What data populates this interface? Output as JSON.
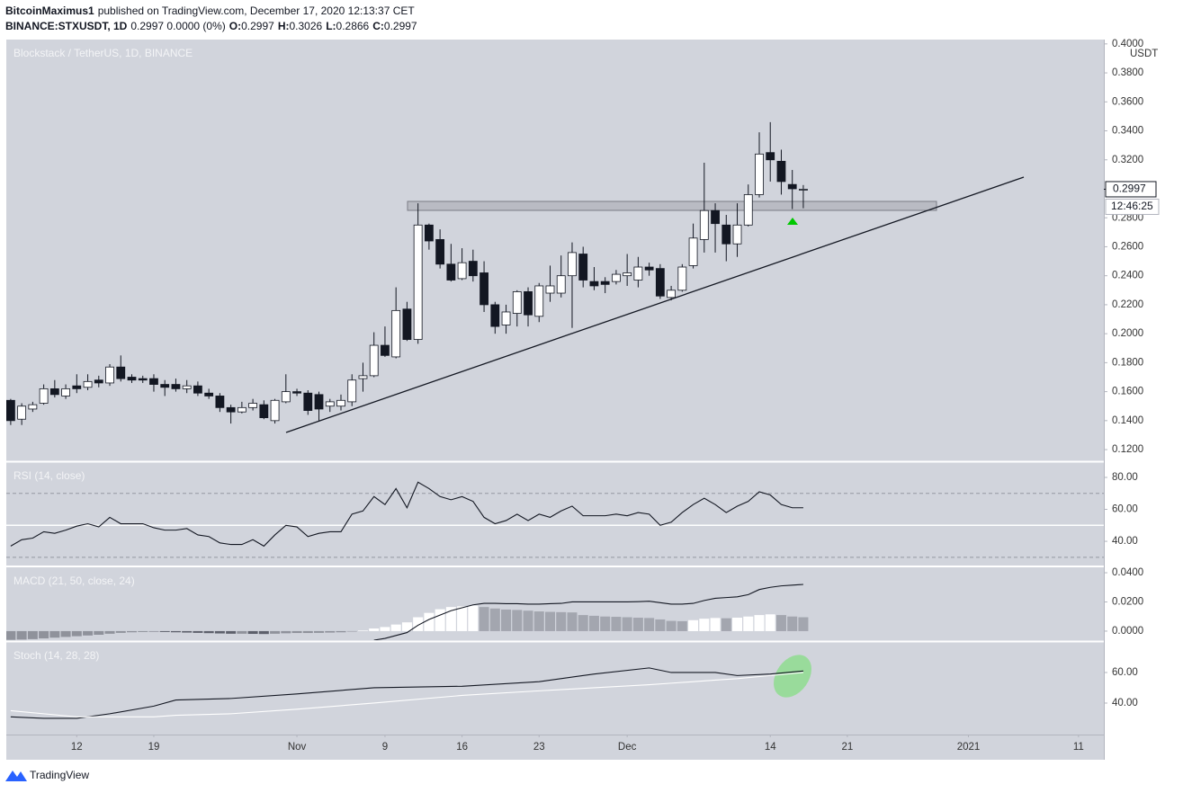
{
  "header": {
    "author": "BitcoinMaximus1",
    "published": "published on TradingView.com, December 17, 2020 12:13:37 CET",
    "symbol": "BINANCE:STXUSDT, 1D",
    "quote": "0.2997 0.0000 (0%)",
    "ohlc": [
      {
        "label": "O:",
        "value": "0.2997"
      },
      {
        "label": "H:",
        "value": "0.3026"
      },
      {
        "label": "L:",
        "value": "0.2866"
      },
      {
        "label": "C:",
        "value": "0.2997"
      }
    ]
  },
  "footer": {
    "brand": "TradingView"
  },
  "chart_data": [
    {
      "type": "candlestick",
      "title": "Blockstack / TetherUS, 1D, BINANCE",
      "unit": "USDT",
      "up_color": "#ffffff",
      "down_color": "#131722",
      "x": [
        280,
        281,
        282,
        283,
        284,
        285,
        286,
        287,
        288,
        289,
        290,
        291,
        292,
        293,
        294,
        295,
        296,
        297,
        298,
        299,
        300,
        301,
        302,
        303,
        304,
        305,
        306,
        307,
        308,
        309,
        310,
        311,
        312,
        313,
        314,
        315,
        316,
        317,
        318,
        319,
        320,
        321,
        322,
        323,
        324,
        325,
        326,
        327,
        328,
        329,
        330,
        331,
        332,
        333,
        334,
        335,
        336,
        337,
        338,
        339,
        340,
        341,
        342,
        343,
        344,
        345,
        346,
        347,
        348,
        349,
        350,
        351,
        352
      ],
      "open": [
        0.154,
        0.141,
        0.148,
        0.152,
        0.162,
        0.157,
        0.164,
        0.163,
        0.168,
        0.166,
        0.177,
        0.17,
        0.169,
        0.169,
        0.165,
        0.165,
        0.162,
        0.164,
        0.159,
        0.157,
        0.149,
        0.146,
        0.149,
        0.151,
        0.14,
        0.153,
        0.16,
        0.159,
        0.158,
        0.15,
        0.15,
        0.153,
        0.169,
        0.171,
        0.192,
        0.184,
        0.217,
        0.196,
        0.275,
        0.265,
        0.248,
        0.238,
        0.25,
        0.242,
        0.22,
        0.206,
        0.214,
        0.229,
        0.212,
        0.228,
        0.228,
        0.24,
        0.255,
        0.236,
        0.236,
        0.236,
        0.24,
        0.237,
        0.246,
        0.245,
        0.225,
        0.23,
        0.247,
        0.265,
        0.285,
        0.275,
        0.262,
        0.275,
        0.296,
        0.325,
        0.319,
        0.303,
        0.2997
      ],
      "high": [
        0.155,
        0.152,
        0.153,
        0.165,
        0.168,
        0.165,
        0.172,
        0.172,
        0.171,
        0.179,
        0.185,
        0.172,
        0.171,
        0.172,
        0.168,
        0.169,
        0.168,
        0.167,
        0.162,
        0.159,
        0.151,
        0.153,
        0.155,
        0.154,
        0.155,
        0.172,
        0.162,
        0.161,
        0.16,
        0.155,
        0.158,
        0.172,
        0.18,
        0.201,
        0.205,
        0.232,
        0.222,
        0.29,
        0.276,
        0.272,
        0.262,
        0.259,
        0.258,
        0.25,
        0.222,
        0.22,
        0.23,
        0.232,
        0.235,
        0.247,
        0.254,
        0.263,
        0.26,
        0.246,
        0.239,
        0.244,
        0.255,
        0.253,
        0.249,
        0.248,
        0.233,
        0.248,
        0.276,
        0.318,
        0.29,
        0.282,
        0.29,
        0.303,
        0.339,
        0.346,
        0.327,
        0.313,
        0.3026
      ],
      "low": [
        0.137,
        0.137,
        0.146,
        0.151,
        0.156,
        0.155,
        0.159,
        0.161,
        0.163,
        0.164,
        0.167,
        0.166,
        0.166,
        0.16,
        0.157,
        0.16,
        0.159,
        0.157,
        0.155,
        0.146,
        0.138,
        0.145,
        0.147,
        0.141,
        0.138,
        0.152,
        0.157,
        0.144,
        0.14,
        0.146,
        0.147,
        0.15,
        0.16,
        0.17,
        0.184,
        0.183,
        0.195,
        0.193,
        0.258,
        0.245,
        0.236,
        0.237,
        0.236,
        0.215,
        0.2,
        0.2,
        0.205,
        0.205,
        0.208,
        0.222,
        0.225,
        0.204,
        0.232,
        0.23,
        0.228,
        0.234,
        0.233,
        0.232,
        0.24,
        0.224,
        0.223,
        0.229,
        0.245,
        0.256,
        0.256,
        0.25,
        0.253,
        0.274,
        0.294,
        0.305,
        0.296,
        0.286,
        0.2866
      ],
      "close": [
        0.14,
        0.15,
        0.151,
        0.162,
        0.158,
        0.162,
        0.162,
        0.167,
        0.166,
        0.177,
        0.169,
        0.168,
        0.168,
        0.165,
        0.163,
        0.162,
        0.164,
        0.159,
        0.157,
        0.149,
        0.146,
        0.149,
        0.152,
        0.142,
        0.154,
        0.16,
        0.159,
        0.147,
        0.148,
        0.153,
        0.154,
        0.168,
        0.171,
        0.192,
        0.185,
        0.216,
        0.196,
        0.275,
        0.264,
        0.248,
        0.237,
        0.249,
        0.24,
        0.22,
        0.205,
        0.215,
        0.229,
        0.213,
        0.233,
        0.233,
        0.24,
        0.256,
        0.237,
        0.233,
        0.234,
        0.241,
        0.242,
        0.246,
        0.244,
        0.226,
        0.23,
        0.246,
        0.266,
        0.285,
        0.276,
        0.262,
        0.275,
        0.296,
        0.324,
        0.32,
        0.305,
        0.3,
        0.2997
      ],
      "ylim": [
        0.1126,
        0.403
      ],
      "yticks": [
        {
          "value": 0.12,
          "label": "0.1200"
        },
        {
          "value": 0.14,
          "label": "0.1400"
        },
        {
          "value": 0.16,
          "label": "0.1600"
        },
        {
          "value": 0.18,
          "label": "0.1800"
        },
        {
          "value": 0.2,
          "label": "0.2000"
        },
        {
          "value": 0.22,
          "label": "0.2200"
        },
        {
          "value": 0.24,
          "label": "0.2400"
        },
        {
          "value": 0.26,
          "label": "0.2600"
        },
        {
          "value": 0.28,
          "label": "0.2800"
        },
        {
          "value": 0.32,
          "label": "0.3200"
        },
        {
          "value": 0.34,
          "label": "0.3400"
        },
        {
          "value": 0.36,
          "label": "0.3600"
        },
        {
          "value": 0.38,
          "label": "0.3800"
        },
        {
          "value": 0.4,
          "label": "0.4000"
        }
      ],
      "last_price": 0.2997,
      "countdown": "12:46:25",
      "xlim": [
        279.6,
        379.3
      ],
      "xticks": [
        {
          "value": 286,
          "label": "12"
        },
        {
          "value": 293,
          "label": "19"
        },
        {
          "value": 306,
          "label": "Nov"
        },
        {
          "value": 314,
          "label": "9"
        },
        {
          "value": 321,
          "label": "16"
        },
        {
          "value": 328,
          "label": "23"
        },
        {
          "value": 336,
          "label": "Dec"
        },
        {
          "value": 349,
          "label": "14"
        },
        {
          "value": 356,
          "label": "21"
        },
        {
          "value": 367,
          "label": "2021"
        },
        {
          "value": 377,
          "label": "11"
        }
      ],
      "grid": false
    },
    {
      "type": "line",
      "title": "RSI (14, close)",
      "x": [
        280,
        281,
        282,
        283,
        284,
        285,
        286,
        287,
        288,
        289,
        290,
        291,
        292,
        293,
        294,
        295,
        296,
        297,
        298,
        299,
        300,
        301,
        302,
        303,
        304,
        305,
        306,
        307,
        308,
        309,
        310,
        311,
        312,
        313,
        314,
        315,
        316,
        317,
        318,
        319,
        320,
        321,
        322,
        323,
        324,
        325,
        326,
        327,
        328,
        329,
        330,
        331,
        332,
        333,
        334,
        335,
        336,
        337,
        338,
        339,
        340,
        341,
        342,
        343,
        344,
        345,
        346,
        347,
        348,
        349,
        350,
        351,
        352
      ],
      "series": [
        {
          "color": "#131722",
          "values": [
            37,
            41,
            42,
            46,
            45,
            47,
            49.5,
            51,
            49,
            55,
            51,
            51,
            51,
            48.5,
            47,
            47,
            48,
            44,
            43,
            39,
            38,
            38,
            41,
            37,
            44,
            50,
            49,
            43,
            45,
            46,
            46,
            57,
            59,
            68,
            63,
            73,
            61,
            77,
            73,
            68,
            66,
            68,
            65,
            55,
            51,
            53,
            57,
            53,
            57,
            55,
            59,
            62,
            56,
            56,
            56,
            57,
            56,
            58,
            57,
            50,
            52,
            58,
            63,
            67,
            63,
            58,
            62,
            65,
            71,
            69,
            63,
            61,
            61
          ]
        }
      ],
      "levels": [
        70,
        50,
        30
      ],
      "ylim": [
        25.4,
        89
      ],
      "yticks": [
        {
          "value": 40,
          "label": "40.00"
        },
        {
          "value": 60,
          "label": "60.00"
        },
        {
          "value": 80,
          "label": "80.00"
        }
      ]
    },
    {
      "type": "histogram",
      "title": "MACD (21, 50, close, 24)",
      "x": [
        280,
        281,
        282,
        283,
        284,
        285,
        286,
        287,
        288,
        289,
        290,
        291,
        292,
        293,
        294,
        295,
        296,
        297,
        298,
        299,
        300,
        301,
        302,
        303,
        304,
        305,
        306,
        307,
        308,
        309,
        310,
        311,
        312,
        313,
        314,
        315,
        316,
        317,
        318,
        319,
        320,
        321,
        322,
        323,
        324,
        325,
        326,
        327,
        328,
        329,
        330,
        331,
        332,
        333,
        334,
        335,
        336,
        337,
        338,
        339,
        340,
        341,
        342,
        343,
        344,
        345,
        346,
        347,
        348,
        349,
        350,
        351,
        352
      ],
      "values": [
        -0.006,
        -0.0058,
        -0.0055,
        -0.005,
        -0.0045,
        -0.004,
        -0.0035,
        -0.003,
        -0.0025,
        -0.0018,
        -0.0012,
        -0.0008,
        -0.0006,
        -0.0005,
        -0.0006,
        -0.0008,
        -0.001,
        -0.0012,
        -0.0014,
        -0.0016,
        -0.0018,
        -0.0018,
        -0.0019,
        -0.002,
        -0.0018,
        -0.0015,
        -0.0013,
        -0.0013,
        -0.0012,
        -0.001,
        -0.0008,
        -0.0003,
        0.0004,
        0.0018,
        0.0028,
        0.0045,
        0.006,
        0.0095,
        0.0125,
        0.015,
        0.0165,
        0.017,
        0.0175,
        0.0165,
        0.0155,
        0.0148,
        0.0145,
        0.014,
        0.0135,
        0.0132,
        0.013,
        0.0128,
        0.011,
        0.0105,
        0.01,
        0.0098,
        0.0095,
        0.0092,
        0.009,
        0.008,
        0.007,
        0.0068,
        0.0075,
        0.0085,
        0.009,
        0.0088,
        0.0092,
        0.01,
        0.011,
        0.0115,
        0.011,
        0.01,
        0.0095
      ],
      "colors": {
        "rising_positive": "#ffffff",
        "falling_positive": "#a3a6af",
        "falling_negative": "#5d606b",
        "rising_negative": "#8f929b"
      },
      "line": {
        "color": "#131722",
        "values": [
          null,
          null,
          null,
          null,
          null,
          null,
          null,
          null,
          null,
          null,
          null,
          null,
          null,
          null,
          null,
          null,
          null,
          null,
          null,
          null,
          null,
          null,
          null,
          null,
          null,
          null,
          null,
          null,
          null,
          null,
          null,
          null,
          null,
          -0.0062,
          -0.005,
          -0.003,
          -0.001,
          0.004,
          0.008,
          0.011,
          0.014,
          0.016,
          0.018,
          0.019,
          0.019,
          0.0188,
          0.0188,
          0.0185,
          0.0185,
          0.0188,
          0.019,
          0.02,
          0.02,
          0.02,
          0.02,
          0.02,
          0.02,
          0.0202,
          0.0205,
          0.0195,
          0.0185,
          0.0185,
          0.019,
          0.021,
          0.0225,
          0.023,
          0.0235,
          0.025,
          0.0285,
          0.03,
          0.031,
          0.0315,
          0.032
        ]
      },
      "ylim": [
        -0.0062,
        0.0431
      ],
      "yticks": [
        {
          "value": 0,
          "label": "0.0000"
        },
        {
          "value": 0.02,
          "label": "0.0200"
        },
        {
          "value": 0.04,
          "label": "0.0400"
        }
      ]
    },
    {
      "type": "line",
      "title": "Stoch (14, 28, 28)",
      "x": [
        280,
        283,
        286,
        289,
        293,
        295,
        300,
        306,
        313,
        321,
        328,
        333,
        338,
        340,
        344,
        346,
        349,
        352
      ],
      "series": [
        {
          "color": "#131722",
          "values": [
            31,
            30,
            30,
            33,
            38,
            42,
            43,
            46,
            50,
            51,
            54,
            59,
            63,
            60,
            60,
            58,
            59,
            61
          ]
        },
        {
          "color": "#ffffff",
          "values": [
            35,
            33,
            31,
            31,
            31,
            32,
            33,
            36,
            40,
            45,
            48,
            50,
            52,
            53,
            55,
            56,
            58,
            60
          ]
        }
      ],
      "ylim": [
        19.4,
        79.4
      ],
      "yticks": [
        {
          "value": 40,
          "label": "40.00"
        },
        {
          "value": 60,
          "label": "60.00"
        }
      ]
    }
  ]
}
